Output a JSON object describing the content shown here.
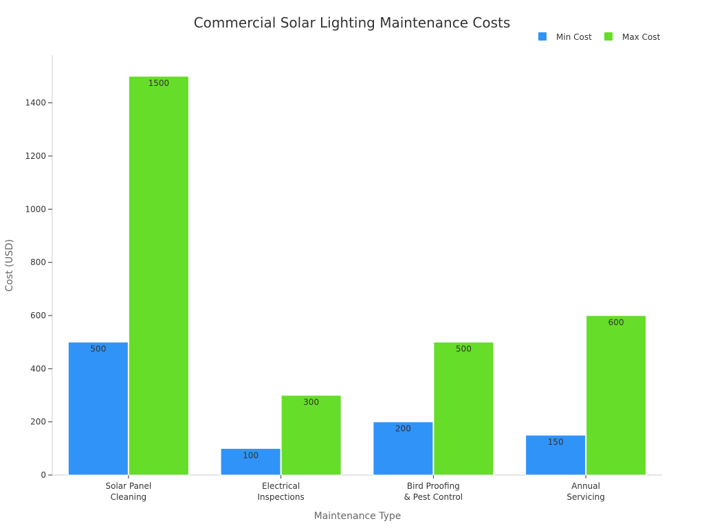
{
  "chart_data": {
    "type": "bar",
    "title": "Commercial Solar Lighting Maintenance Costs",
    "xlabel": "Maintenance Type",
    "ylabel": "Cost (USD)",
    "categories": [
      [
        "Solar Panel",
        "Cleaning"
      ],
      [
        "Electrical",
        "Inspections"
      ],
      [
        "Bird Proofing",
        "& Pest Control"
      ],
      [
        "Annual",
        "Servicing"
      ]
    ],
    "series": [
      {
        "name": "Min Cost",
        "color": "#3093f8",
        "values": [
          500,
          100,
          200,
          150
        ]
      },
      {
        "name": "Max Cost",
        "color": "#66dd28",
        "values": [
          1500,
          300,
          500,
          600
        ]
      }
    ],
    "ylim": [
      0,
      1580
    ],
    "yticks": [
      0,
      200,
      400,
      600,
      800,
      1000,
      1200,
      1400
    ],
    "grid": false,
    "legend_position": "top-right",
    "data_labels": true
  }
}
